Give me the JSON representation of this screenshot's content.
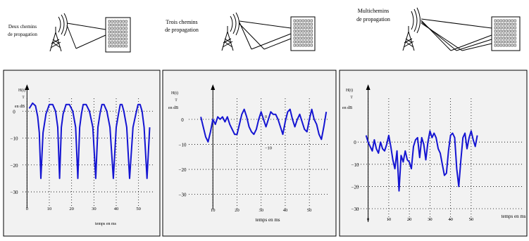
{
  "scenes": [
    {
      "caption_lines": [
        "Deux chemins",
        "de propagation"
      ]
    },
    {
      "caption_lines": [
        "Trois chemins",
        "de propagation"
      ]
    },
    {
      "caption_lines": [
        "Multichemins",
        "de propagation"
      ]
    }
  ],
  "colors": {
    "curve": "#1414d2",
    "panel_bg": "#f2f2f2"
  },
  "icons": [
    "antenna-tower-icon",
    "radio-waves-icon",
    "building-icon"
  ],
  "chart_data": [
    {
      "type": "line",
      "ylabel": "H(t)",
      "ylabel_sub": "T",
      "yunit": "en dB",
      "xlabel": "temps en ms",
      "xticks": [
        "0",
        "10",
        "20",
        "30",
        "40",
        "50"
      ],
      "xtick_values": [
        0,
        10,
        20,
        30,
        40,
        50
      ],
      "yticks": [
        "0",
        "−10",
        "−20",
        "−30"
      ],
      "ytick_values": [
        0,
        -10,
        -20,
        -30
      ],
      "xlim": [
        -2,
        58
      ],
      "ylim": [
        -36,
        10
      ],
      "grid": true,
      "series": [
        {
          "x": [
            1,
            2.5,
            3.8,
            4.8,
            5.5,
            6.2,
            7.2,
            8.5,
            10,
            11.5,
            12.8,
            13.8,
            14.6,
            15.4,
            16.2,
            17.5,
            19,
            20.5,
            21.8,
            22.8,
            23.6,
            24.4,
            25.2,
            26.5,
            28,
            29.5,
            30.8,
            31.8,
            32.7,
            33.6,
            34.5,
            35.8,
            37.2,
            38.7,
            40,
            41,
            41.8,
            42.6,
            43.4,
            44.7,
            46,
            47.5,
            48.8,
            49.8,
            50.7,
            51.6,
            52.5,
            53.8,
            55
          ],
          "y": [
            1,
            3,
            2,
            -2,
            -8,
            -25,
            -8,
            -1,
            2.5,
            2.5,
            0,
            -6,
            -25,
            -6,
            -1,
            2.5,
            2.5,
            0,
            -6,
            -25,
            -6,
            -1,
            2.5,
            2.5,
            0,
            -6,
            -25,
            -6,
            -1,
            2.5,
            2.5,
            0,
            -6,
            -25,
            -6,
            -1,
            2.5,
            2.5,
            0,
            -6,
            -25,
            -6,
            -1,
            2.5,
            2.5,
            0,
            -6,
            -25,
            -6
          ]
        }
      ]
    },
    {
      "type": "line",
      "ylabel": "H(t)",
      "ylabel_sub": "T",
      "yunit": "en dB",
      "xlabel": "temps en ms",
      "xticks": [
        "10",
        "20",
        "30",
        "40",
        "50"
      ],
      "xtick_values": [
        10,
        20,
        30,
        40,
        50
      ],
      "yticks": [
        "0",
        "−10",
        "−20",
        "−30"
      ],
      "ytick_values": [
        0,
        -10,
        -20,
        -30
      ],
      "annotations": [
        {
          "text": "0",
          "x": 32,
          "y": 0.5
        },
        {
          "text": "−10",
          "x": 33,
          "y": -12
        }
      ],
      "xlim": [
        0,
        59
      ],
      "ylim": [
        -36,
        14
      ],
      "grid": true,
      "series": [
        {
          "x": [
            5,
            6,
            7,
            8,
            9,
            10,
            11,
            12,
            13,
            14,
            15,
            16,
            17,
            18,
            19,
            20,
            21,
            22,
            23,
            24,
            25,
            26,
            27,
            28,
            29,
            30,
            31,
            32,
            33,
            34,
            35,
            36,
            37,
            38,
            39,
            40,
            41,
            42,
            43,
            44,
            45,
            46,
            47,
            48,
            49,
            50,
            51,
            52,
            53,
            54,
            55,
            56,
            57
          ],
          "y": [
            1,
            -3,
            -7,
            -9,
            -5,
            0,
            -2,
            1,
            0,
            1,
            -1,
            1,
            -2,
            -4,
            -6,
            -6,
            -2,
            2,
            4,
            1,
            -3,
            -5,
            -6,
            -4,
            0,
            3,
            0,
            -3,
            0,
            3,
            2,
            2,
            0,
            -3,
            -6,
            -1,
            3,
            4,
            0,
            -3,
            0,
            2,
            -1,
            -4,
            -5,
            0,
            4,
            0,
            -2,
            -6,
            -8,
            -3,
            3
          ]
        }
      ]
    },
    {
      "type": "line",
      "ylabel": "H(t)",
      "ylabel_sub": "T",
      "yunit": "en dB",
      "xlabel": "temps en ms",
      "xticks": [
        "0",
        "10",
        "20",
        "30",
        "40",
        "50"
      ],
      "xtick_values": [
        0,
        10,
        20,
        30,
        40,
        50
      ],
      "yticks": [
        "0",
        "−10",
        "−20",
        "−30"
      ],
      "ytick_values": [
        0,
        -10,
        -20,
        -30
      ],
      "xlim": [
        -5,
        75
      ],
      "ylim": [
        -36,
        26
      ],
      "grid": true,
      "series": [
        {
          "x": [
            -1,
            0,
            1,
            2,
            3,
            4,
            5,
            6,
            7,
            8,
            9,
            10,
            11,
            12,
            13,
            14,
            15,
            16,
            17,
            18,
            19,
            20,
            21,
            22,
            23,
            24,
            25,
            26,
            27,
            28,
            29,
            30,
            31,
            32,
            33,
            34,
            35,
            36,
            37,
            38,
            39,
            40,
            41,
            42,
            43,
            44,
            45,
            46,
            47,
            48,
            49,
            50,
            51,
            52,
            53
          ],
          "y": [
            3,
            0,
            -2,
            -4,
            1,
            -3,
            -5,
            0,
            -3,
            -4,
            -1,
            3,
            -2,
            -8,
            -12,
            -4,
            -22,
            -6,
            -9,
            -4,
            -8,
            -9,
            -12,
            -2,
            1,
            2,
            -7,
            2,
            -1,
            -8,
            0,
            5,
            2,
            4,
            2,
            -3,
            -5,
            -10,
            -15,
            -14,
            -4,
            3,
            4,
            2,
            -12,
            -20,
            -8,
            2,
            4,
            -3,
            2,
            5,
            1,
            -2,
            3
          ]
        }
      ]
    }
  ]
}
